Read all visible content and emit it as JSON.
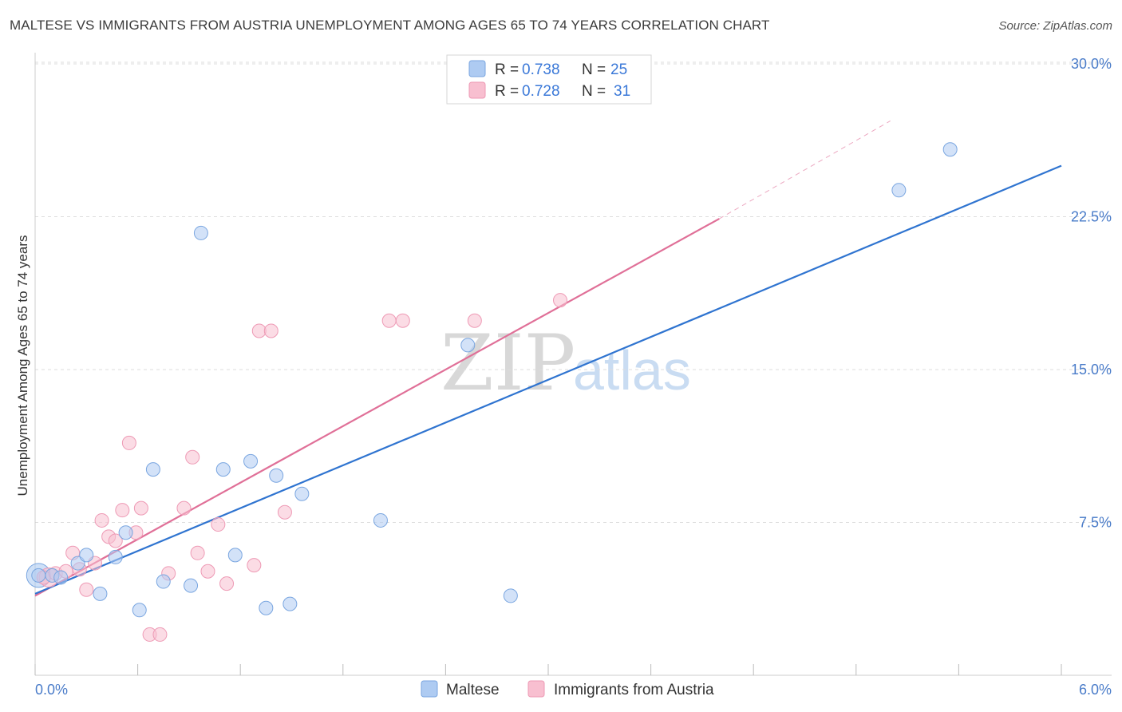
{
  "title": "MALTESE VS IMMIGRANTS FROM AUSTRIA UNEMPLOYMENT AMONG AGES 65 TO 74 YEARS CORRELATION CHART",
  "source": "Source: ZipAtlas.com",
  "watermark": {
    "zip": "ZIP",
    "atlas": "atlas"
  },
  "colors": {
    "maltese_fill": "#aecbf2",
    "maltese_stroke": "#7aa6e0",
    "maltese_line": "#2f74d0",
    "austria_fill": "#f8bfd0",
    "austria_stroke": "#ee9ab5",
    "austria_line": "#e07098",
    "tick": "#4a7cc9",
    "grid": "#dddddd"
  },
  "legend": {
    "rows": [
      {
        "r_label": "R =",
        "r_value": "0.738",
        "n_label": "N =",
        "n_value": "25"
      },
      {
        "r_label": "R =",
        "r_value": "0.728",
        "n_label": "N =",
        "n_value": "31"
      }
    ]
  },
  "chart_data": {
    "type": "scatter",
    "title": "MALTESE VS IMMIGRANTS FROM AUSTRIA UNEMPLOYMENT AMONG AGES 65 TO 74 YEARS CORRELATION CHART",
    "xlabel": "",
    "ylabel": "Unemployment Among Ages 65 to 74 years",
    "xlim": [
      0,
      6.0
    ],
    "ylim": [
      0,
      30.0
    ],
    "x_tick_labels": [
      "0.0%",
      "6.0%"
    ],
    "y_ticks": [
      7.5,
      15.0,
      22.5,
      30.0
    ],
    "y_tick_labels": [
      "7.5%",
      "15.0%",
      "22.5%",
      "30.0%"
    ],
    "grid": true,
    "legend_position": "top-center",
    "series": [
      {
        "name": "Maltese",
        "R": 0.738,
        "N": 25,
        "points": [
          [
            0.02,
            4.9
          ],
          [
            0.1,
            4.9
          ],
          [
            0.15,
            4.8
          ],
          [
            0.25,
            5.5
          ],
          [
            0.3,
            5.9
          ],
          [
            0.38,
            4.0
          ],
          [
            0.47,
            5.8
          ],
          [
            0.53,
            7.0
          ],
          [
            0.61,
            3.2
          ],
          [
            0.69,
            10.1
          ],
          [
            0.75,
            4.6
          ],
          [
            0.91,
            4.4
          ],
          [
            0.97,
            21.7
          ],
          [
            1.1,
            10.1
          ],
          [
            1.17,
            5.9
          ],
          [
            1.26,
            10.5
          ],
          [
            1.35,
            3.3
          ],
          [
            1.41,
            9.8
          ],
          [
            1.49,
            3.5
          ],
          [
            1.56,
            8.9
          ],
          [
            2.02,
            7.6
          ],
          [
            2.53,
            16.2
          ],
          [
            2.78,
            3.9
          ],
          [
            5.05,
            23.8
          ],
          [
            5.35,
            25.8
          ]
        ],
        "trend": {
          "x0": 0.0,
          "y0": 4.0,
          "x1": 6.0,
          "y1": 25.0,
          "dashed_extension": false
        }
      },
      {
        "name": "Immigrants from Austria",
        "R": 0.728,
        "N": 31,
        "points": [
          [
            0.05,
            4.8
          ],
          [
            0.12,
            5.0
          ],
          [
            0.18,
            5.1
          ],
          [
            0.22,
            6.0
          ],
          [
            0.26,
            5.2
          ],
          [
            0.3,
            4.2
          ],
          [
            0.35,
            5.5
          ],
          [
            0.39,
            7.6
          ],
          [
            0.43,
            6.8
          ],
          [
            0.47,
            6.6
          ],
          [
            0.51,
            8.1
          ],
          [
            0.55,
            11.4
          ],
          [
            0.59,
            7.0
          ],
          [
            0.62,
            8.2
          ],
          [
            0.67,
            2.0
          ],
          [
            0.73,
            2.0
          ],
          [
            0.78,
            5.0
          ],
          [
            0.87,
            8.2
          ],
          [
            0.92,
            10.7
          ],
          [
            0.95,
            6.0
          ],
          [
            1.01,
            5.1
          ],
          [
            1.07,
            7.4
          ],
          [
            1.12,
            4.5
          ],
          [
            1.28,
            5.4
          ],
          [
            1.31,
            16.9
          ],
          [
            1.38,
            16.9
          ],
          [
            1.46,
            8.0
          ],
          [
            2.07,
            17.4
          ],
          [
            2.15,
            17.4
          ],
          [
            2.57,
            17.4
          ],
          [
            3.07,
            18.4
          ]
        ],
        "trend": {
          "x0": 0.0,
          "y0": 3.9,
          "x1": 4.0,
          "y1": 22.4,
          "dashed_to_x": 5.0,
          "dashed_to_y": 27.2
        }
      }
    ]
  },
  "bottom_legend": [
    {
      "label": "Maltese"
    },
    {
      "label": "Immigrants from Austria"
    }
  ]
}
